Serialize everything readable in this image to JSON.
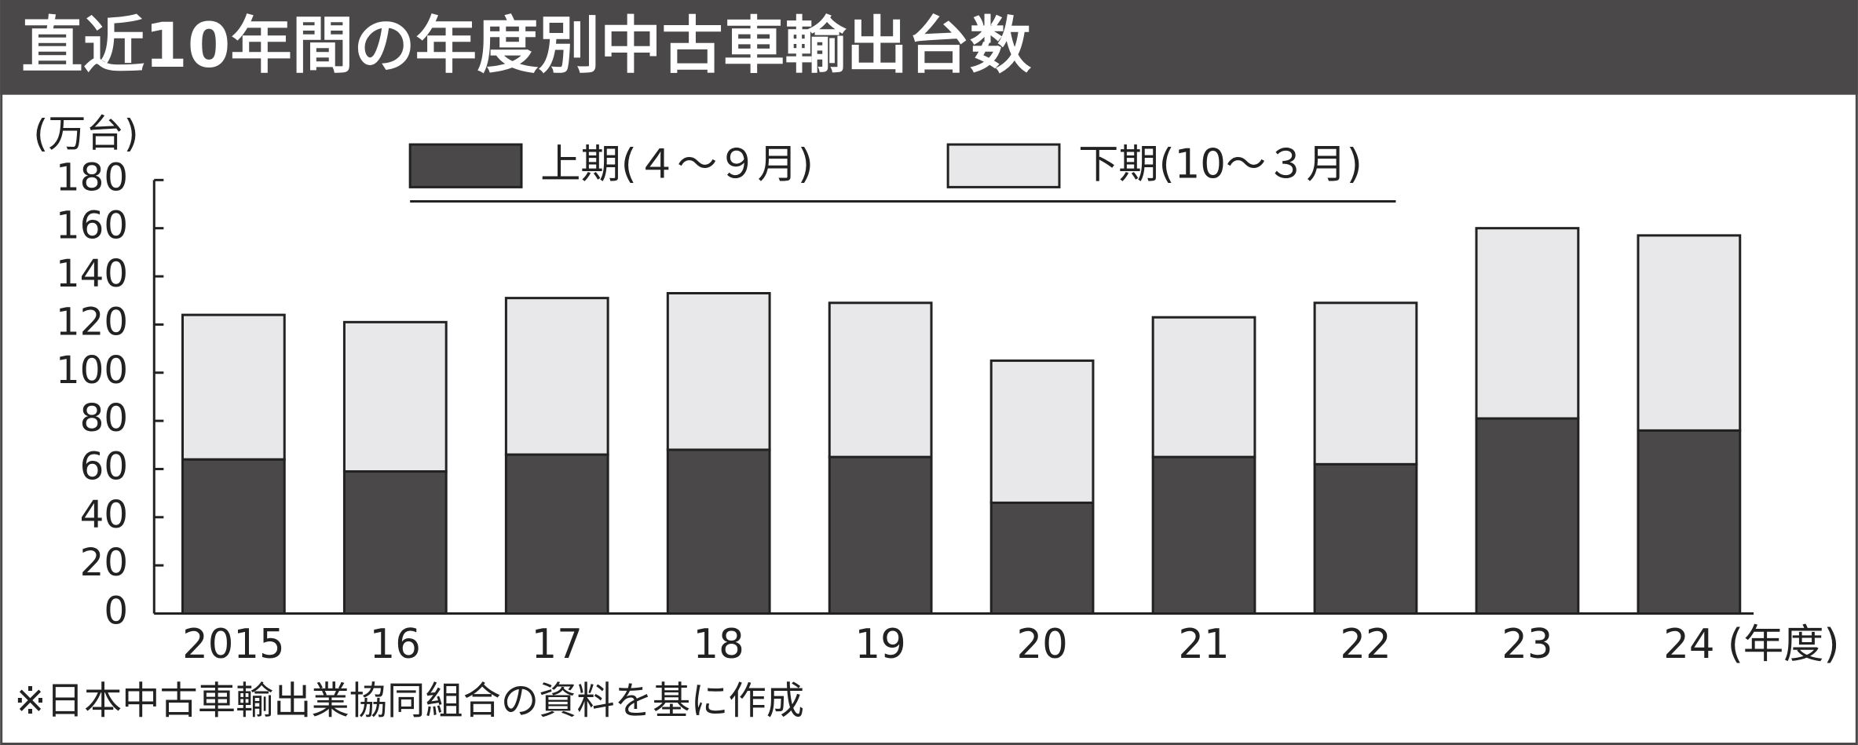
{
  "chart_data": {
    "type": "stacked_bar",
    "title": "直近10年間の年度別中古車輸出台数",
    "y_axis_label": "(万台)",
    "x_axis_label": "(年度)",
    "note": "※日本中古車輸出業協同組合の資料を基に作成",
    "categories": [
      "2015",
      "16",
      "17",
      "18",
      "19",
      "20",
      "21",
      "22",
      "23",
      "24"
    ],
    "series": [
      {
        "name": "上期(４～９月)",
        "color": "#4a4849",
        "values": [
          64,
          59,
          66,
          68,
          65,
          46,
          65,
          62,
          81,
          76
        ]
      },
      {
        "name": "下期(10～３月)",
        "color": "#e8e8ea",
        "values": [
          60,
          62,
          65,
          65,
          64,
          59,
          58,
          67,
          79,
          81
        ]
      }
    ],
    "ylim": [
      0,
      180
    ],
    "yticks": [
      0,
      20,
      40,
      60,
      80,
      100,
      120,
      140,
      160,
      180
    ]
  }
}
